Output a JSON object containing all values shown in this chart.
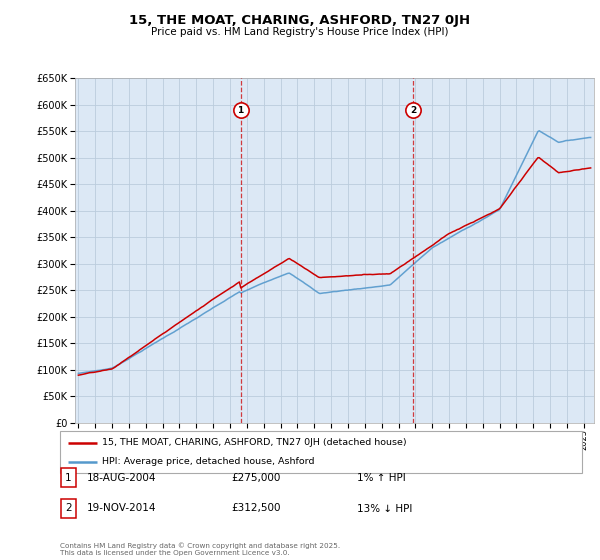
{
  "title": "15, THE MOAT, CHARING, ASHFORD, TN27 0JH",
  "subtitle": "Price paid vs. HM Land Registry's House Price Index (HPI)",
  "ylim": [
    0,
    650000
  ],
  "yticks": [
    0,
    50000,
    100000,
    150000,
    200000,
    250000,
    300000,
    350000,
    400000,
    450000,
    500000,
    550000,
    600000,
    650000
  ],
  "xlim_start": 1994.8,
  "xlim_end": 2025.6,
  "legend_label_red": "15, THE MOAT, CHARING, ASHFORD, TN27 0JH (detached house)",
  "legend_label_blue": "HPI: Average price, detached house, Ashford",
  "sale1_year": 2004.63,
  "sale1_price": 275000,
  "sale1_label": "1",
  "sale1_date": "18-AUG-2004",
  "sale1_amount": "£275,000",
  "sale1_hpi_pct": "1% ↑ HPI",
  "sale2_year": 2014.88,
  "sale2_price": 312500,
  "sale2_label": "2",
  "sale2_date": "19-NOV-2014",
  "sale2_amount": "£312,500",
  "sale2_hpi_pct": "13% ↓ HPI",
  "footer": "Contains HM Land Registry data © Crown copyright and database right 2025.\nThis data is licensed under the Open Government Licence v3.0.",
  "bg_color": "#dce8f5",
  "grid_color": "#bbccdd",
  "red_color": "#cc0000",
  "blue_color": "#5599cc"
}
